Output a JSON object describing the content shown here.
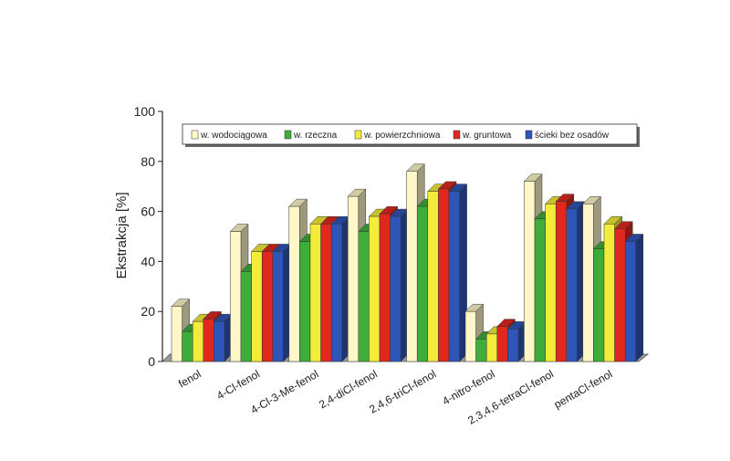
{
  "chart_data": {
    "type": "bar",
    "title": "",
    "xlabel": "",
    "ylabel": "Ekstrakcja [%]",
    "ylim": [
      0,
      100
    ],
    "yticks": [
      0,
      20,
      40,
      60,
      80,
      100
    ],
    "grid": false,
    "legend_position": "top",
    "categories": [
      "fenol",
      "4-Cl-fenol",
      "4-Cl-3-Me-fenol",
      "2,4-diCl-fenol",
      "2,4,6-triCl-fenol",
      "4-nitro-fenol",
      "2,3,4,6-tetraCl-fenol",
      "pentaCl-fenol"
    ],
    "series": [
      {
        "name": "w. wodociągowa",
        "color": "#FFF7C8",
        "values": [
          22,
          52,
          62,
          66,
          76,
          20,
          72,
          63
        ]
      },
      {
        "name": "w. rzeczna",
        "color": "#3DAE3A",
        "values": [
          12,
          36,
          48,
          52,
          62,
          9,
          57,
          45
        ]
      },
      {
        "name": "w. powierzchniowa",
        "color": "#F4EC3A",
        "values": [
          16,
          44,
          55,
          58,
          68,
          11,
          63,
          55
        ]
      },
      {
        "name": "w. gruntowa",
        "color": "#E0281E",
        "values": [
          17,
          44,
          55,
          59,
          69,
          14,
          64,
          53
        ]
      },
      {
        "name": "ścieki bez osadów",
        "color": "#2E56B8",
        "values": [
          16,
          44,
          55,
          58,
          68,
          13,
          61,
          48
        ]
      }
    ]
  }
}
